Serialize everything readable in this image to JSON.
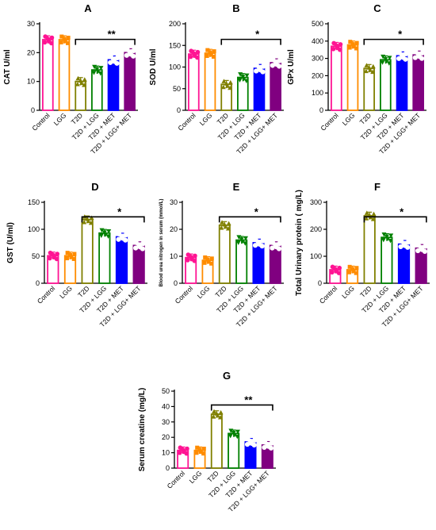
{
  "chart_data": [
    {
      "panel": "A",
      "type": "bar",
      "ylabel": "CAT U/ml",
      "ylim": [
        0,
        30
      ],
      "yticks": [
        0,
        10,
        20,
        30
      ],
      "categories": [
        "Control",
        "LGG",
        "T2D",
        "T2D + LGG",
        "T2D + MET",
        "T2D + LGG+ MET"
      ],
      "values": [
        24.5,
        24.5,
        10,
        14,
        17.5,
        20
      ],
      "significance": {
        "label": "**",
        "from": 2,
        "to": 5
      }
    },
    {
      "panel": "B",
      "type": "bar",
      "ylabel": "SOD U/ml",
      "ylim": [
        0,
        200
      ],
      "yticks": [
        0,
        50,
        100,
        150,
        200
      ],
      "categories": [
        "Control",
        "LGG",
        "T2D",
        "T2D + LGG",
        "T2D + MET",
        "T2D + LGG+ MET"
      ],
      "values": [
        130,
        132,
        60,
        76,
        97,
        110
      ],
      "significance": {
        "label": "*",
        "from": 2,
        "to": 5
      }
    },
    {
      "panel": "C",
      "type": "bar",
      "ylabel": "GPx U/ml",
      "ylim": [
        0,
        500
      ],
      "yticks": [
        0,
        100,
        200,
        300,
        400,
        500
      ],
      "categories": [
        "Control",
        "LGG",
        "T2D",
        "T2D + LGG",
        "T2D + MET",
        "T2D + LGG+ MET"
      ],
      "values": [
        370,
        378,
        242,
        292,
        315,
        320
      ],
      "significance": {
        "label": "*",
        "from": 2,
        "to": 5
      }
    },
    {
      "panel": "D",
      "type": "bar",
      "ylabel": "GST (U/ml)",
      "ylim": [
        0,
        150
      ],
      "yticks": [
        0,
        50,
        100,
        150
      ],
      "categories": [
        "Control",
        "LGG",
        "T2D",
        "T2D + LGG",
        "T2D + MET",
        "T2D + LGG+ MET"
      ],
      "values": [
        51,
        51,
        118,
        93,
        86,
        70
      ],
      "significance": {
        "label": "*",
        "from": 2,
        "to": 5
      }
    },
    {
      "panel": "E",
      "type": "bar",
      "ylabel": "Blood urea nitrogen in serum (mmol/L)",
      "ylim": [
        0,
        30
      ],
      "yticks": [
        0,
        10,
        20,
        30
      ],
      "categories": [
        "Control",
        "LGG",
        "T2D",
        "T2D + LGG",
        "T2D + MET",
        "T2D + LGG+ MET"
      ],
      "values": [
        9.5,
        8.5,
        21.5,
        16,
        15,
        14
      ],
      "significance": {
        "label": "*",
        "from": 2,
        "to": 5
      }
    },
    {
      "panel": "F",
      "type": "bar",
      "ylabel": "Total Urinary protein ( mg/L)",
      "ylim": [
        0,
        300
      ],
      "yticks": [
        0,
        100,
        200,
        300
      ],
      "categories": [
        "Control",
        "LGG",
        "T2D",
        "T2D + LGG",
        "T2D + MET",
        "T2D + LGG+ MET"
      ],
      "values": [
        50,
        50,
        250,
        170,
        145,
        130
      ],
      "significance": {
        "label": "*",
        "from": 2,
        "to": 5
      }
    },
    {
      "panel": "G",
      "type": "bar",
      "ylabel": "Serum creatine (mg/L)",
      "ylim": [
        0,
        50
      ],
      "yticks": [
        0,
        10,
        20,
        30,
        40,
        50
      ],
      "categories": [
        "Control",
        "LGG",
        "T2D",
        "T2D + LGG",
        "T2D + MET",
        "T2D + LGG+ MET"
      ],
      "values": [
        11.5,
        11.5,
        35,
        22.5,
        17,
        15
      ],
      "significance": {
        "label": "**",
        "from": 2,
        "to": 5
      }
    }
  ],
  "colors": [
    "#ff1493",
    "#ff8c00",
    "#808000",
    "#008000",
    "#0000ff",
    "#800080"
  ]
}
